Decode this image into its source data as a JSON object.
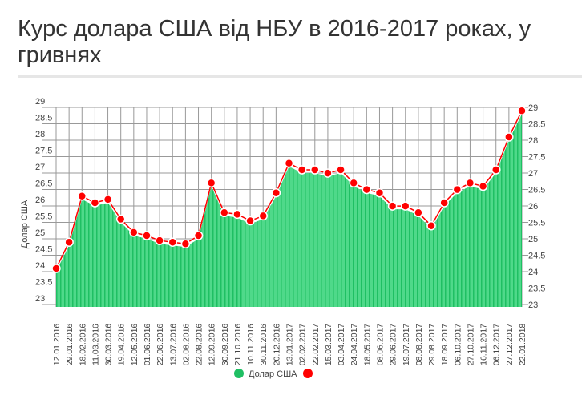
{
  "chart_data": {
    "type": "area",
    "title": "Курс долара США від НБУ в 2016-2017 роках, у гривнях",
    "xlabel": "",
    "ylabel": "Долар США",
    "ylim": [
      23,
      29
    ],
    "yticks": [
      "23",
      "23.5",
      "24",
      "24.5",
      "25",
      "25.5",
      "26",
      "26.5",
      "27",
      "27.5",
      "28",
      "28.5",
      "29"
    ],
    "grid": true,
    "legend_position": "bottom",
    "categories": [
      "12.01.2016",
      "29.01.2016",
      "18.02.2016",
      "11.03.2016",
      "30.03.2016",
      "19.04.2016",
      "12.05.2016",
      "01.06.2016",
      "22.06.2016",
      "13.07.2016",
      "02.08.2016",
      "22.08.2016",
      "12.09.2016",
      "30.09.2016",
      "21.10.2016",
      "10.11.2016",
      "30.11.2016",
      "20.12.2016",
      "13.01.2017",
      "02.02.2017",
      "22.02.2017",
      "15.03.2017",
      "03.04.2017",
      "24.04.2017",
      "18.05.2017",
      "08.06.2017",
      "29.06.2017",
      "19.07.2017",
      "08.08.2017",
      "29.08.2017",
      "18.09.2017",
      "06.10.2017",
      "27.10.2017",
      "16.11.2017",
      "06.12.2017",
      "27.12.2017",
      "22.01.2018"
    ],
    "series": [
      {
        "name": "Долар США",
        "color": "#2ecc71",
        "values": [
          24.0,
          24.8,
          26.2,
          26.0,
          26.1,
          25.5,
          25.1,
          25.0,
          24.85,
          24.8,
          24.75,
          25.0,
          26.6,
          25.7,
          25.65,
          25.45,
          25.6,
          26.3,
          27.2,
          27.0,
          27.0,
          26.9,
          27.0,
          26.6,
          26.4,
          26.3,
          25.9,
          25.9,
          25.7,
          25.3,
          26.0,
          26.4,
          26.6,
          26.5,
          27.0,
          28.0,
          28.8
        ]
      },
      {
        "name": "",
        "color": "#ff0000",
        "marker_only": true
      }
    ]
  }
}
